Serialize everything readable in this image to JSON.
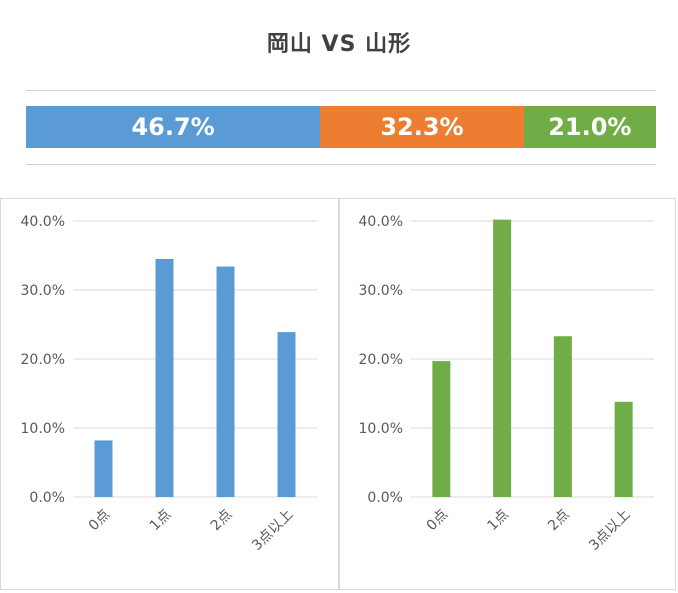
{
  "title": "岡山 VS 山形",
  "colors": {
    "home": "#5b9bd5",
    "draw": "#ed7d31",
    "away": "#70ad47"
  },
  "summary": [
    {
      "label": "46.7%",
      "value": 46.7,
      "color": "#5b9bd5"
    },
    {
      "label": "32.3%",
      "value": 32.3,
      "color": "#ed7d31"
    },
    {
      "label": "21.0%",
      "value": 21.0,
      "color": "#70ad47"
    }
  ],
  "chart_data": [
    {
      "type": "bar",
      "categories": [
        "0点",
        "1点",
        "2点",
        "3点以上"
      ],
      "values": [
        8.2,
        34.5,
        33.4,
        23.9
      ],
      "ylim": [
        0,
        40
      ],
      "yticks": [
        "0.0%",
        "10.0%",
        "20.0%",
        "30.0%",
        "40.0%"
      ],
      "grid": true,
      "color": "#5b9bd5"
    },
    {
      "type": "bar",
      "categories": [
        "0点",
        "1点",
        "2点",
        "3点以上"
      ],
      "values": [
        19.7,
        40.2,
        23.3,
        13.8
      ],
      "ylim": [
        0,
        40
      ],
      "yticks": [
        "0.0%",
        "10.0%",
        "20.0%",
        "30.0%",
        "40.0%"
      ],
      "grid": true,
      "color": "#70ad47"
    }
  ]
}
